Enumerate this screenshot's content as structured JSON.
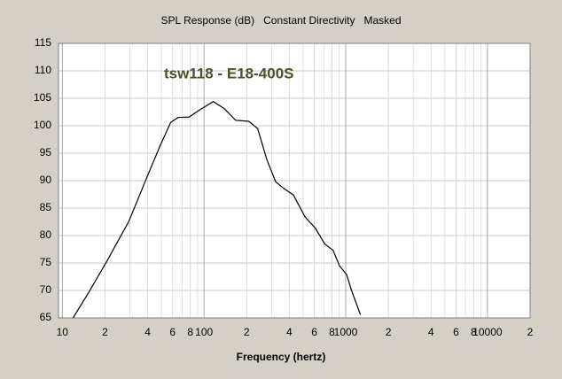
{
  "chart_data": {
    "type": "line",
    "title": "SPL Response (dB)   Constant Directivity   Masked",
    "annotation": "tsw118 - E18-400S",
    "x_label": "Frequency (hertz)",
    "log_x": true,
    "grid": true,
    "xlim": [
      9.4,
      20000
    ],
    "ylim": [
      65,
      115
    ],
    "yticks": [
      65,
      70,
      75,
      80,
      85,
      90,
      95,
      100,
      105,
      110,
      115
    ],
    "xticks": [
      10,
      {
        "value": 20,
        "label": "2"
      },
      {
        "value": 40,
        "label": "4"
      },
      {
        "value": 60,
        "label": "6"
      },
      {
        "value": 80,
        "label": "8"
      },
      100,
      {
        "value": 200,
        "label": "2"
      },
      {
        "value": 400,
        "label": "4"
      },
      {
        "value": 600,
        "label": "6"
      },
      {
        "value": 800,
        "label": "8"
      },
      1000,
      {
        "value": 2000,
        "label": "2"
      },
      {
        "value": 4000,
        "label": "4"
      },
      {
        "value": 6000,
        "label": "6"
      },
      {
        "value": 8000,
        "label": "8"
      },
      10000,
      {
        "value": 20000,
        "label": "2"
      }
    ],
    "xgrid_minor": [
      30,
      50,
      70,
      90,
      300,
      500,
      700,
      900,
      3000,
      5000,
      7000,
      9000
    ],
    "series": [
      {
        "name": "tsw118 - E18-400S",
        "color": "#000000",
        "x": [
          11.9,
          15.4,
          20.6,
          29.5,
          39.5,
          48.9,
          58.1,
          65.5,
          78.6,
          93.5,
          116,
          138,
          167,
          207,
          239,
          277,
          320,
          369,
          427,
          516,
          612,
          710,
          815,
          902,
          1014,
          1100,
          1270
        ],
        "values": [
          65,
          69.7,
          75.3,
          82.6,
          90.6,
          96.3,
          100.6,
          101.5,
          101.6,
          102.9,
          104.4,
          103.2,
          101.0,
          100.8,
          99.5,
          93.9,
          89.8,
          88.5,
          87.4,
          83.4,
          81.3,
          78.5,
          77.3,
          74.5,
          72.9,
          70.0,
          65.6
        ]
      }
    ]
  }
}
